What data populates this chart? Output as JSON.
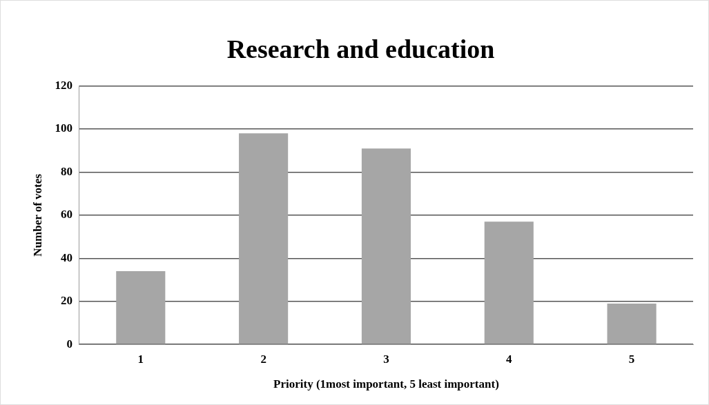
{
  "chart_data": {
    "type": "bar",
    "title": "Research and education",
    "xlabel": "Priority (1most important, 5 least important)",
    "ylabel": "Number of votes",
    "categories": [
      "1",
      "2",
      "3",
      "4",
      "5"
    ],
    "values": [
      34,
      98,
      91,
      57,
      19
    ],
    "color": "#a6a6a6",
    "ylim": [
      0,
      120
    ],
    "yticks": [
      0,
      20,
      40,
      60,
      80,
      100,
      120
    ],
    "grid": "y",
    "legend": false
  }
}
